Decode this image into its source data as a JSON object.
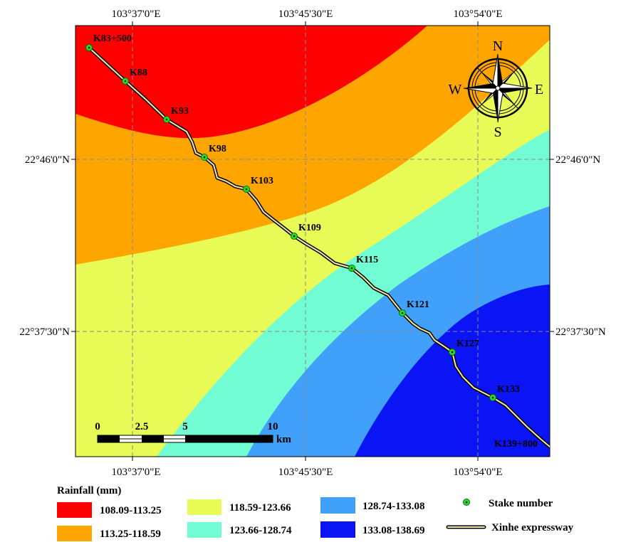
{
  "map": {
    "coords": {
      "top": [
        "103°37'0\"E",
        "103°45'30\"E",
        "103°54'0\"E"
      ],
      "bottom": [
        "103°37'0\"E",
        "103°45'30\"E",
        "103°54'0\"E"
      ],
      "left": [
        "22°46'0\"N",
        "22°37'30\"N"
      ],
      "right": [
        "22°46'0\"N",
        "22°37'30\"N"
      ]
    },
    "stakes": [
      "K83+500",
      "K88",
      "K93",
      "K98",
      "K103",
      "K109",
      "K115",
      "K121",
      "K127",
      "K133",
      "K139+800"
    ],
    "scale_bar": {
      "ticks": [
        "0",
        "2.5",
        "5",
        "10"
      ],
      "unit": "km"
    },
    "compass": {
      "n": "N",
      "s": "S",
      "e": "E",
      "w": "W"
    }
  },
  "legend": {
    "title": "Rainfall (mm)",
    "classes": [
      {
        "label": "108.09-113.25",
        "color": "#ff0000"
      },
      {
        "label": "113.25-118.59",
        "color": "#ffa500"
      },
      {
        "label": "118.59-123.66",
        "color": "#e8fa55"
      },
      {
        "label": "123.66-128.74",
        "color": "#72fcd3"
      },
      {
        "label": "128.74-133.08",
        "color": "#40a0fa"
      },
      {
        "label": "133.08-138.69",
        "color": "#0a14f5"
      }
    ],
    "stake_label": "Stake number",
    "road_label": "Xinhe expressway"
  }
}
